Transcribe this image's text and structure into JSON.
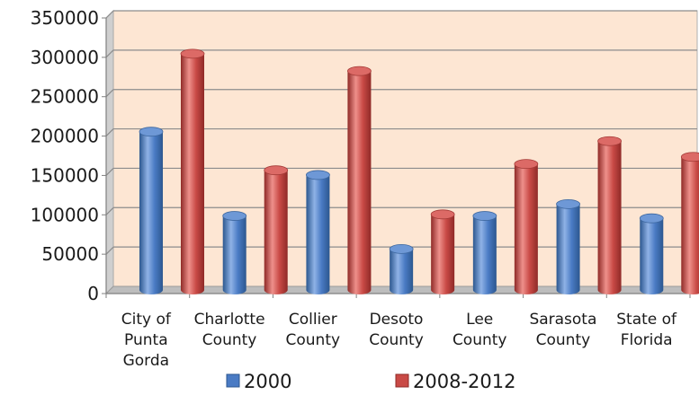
{
  "chart_data": {
    "type": "bar",
    "title": "",
    "xlabel": "",
    "ylabel": "",
    "categories": [
      [
        "City of",
        "Punta",
        "Gorda"
      ],
      [
        "Charlotte",
        "County"
      ],
      [
        "Collier",
        "County"
      ],
      [
        "Desoto",
        "County"
      ],
      [
        "Lee",
        "County"
      ],
      [
        "Sarasota",
        "County"
      ],
      [
        "State of",
        "Florida"
      ]
    ],
    "series": [
      {
        "name": "2000",
        "color": "#4a7bc4",
        "values": [
          201000,
          94000,
          146000,
          52000,
          94000,
          109000,
          91000
        ]
      },
      {
        "name": "2008-2012",
        "color": "#c94a46",
        "values": [
          300000,
          152000,
          278000,
          96000,
          160000,
          189000,
          169000
        ]
      }
    ],
    "ylim": [
      0,
      350000
    ],
    "yticks": [
      "0",
      "50000",
      "100000",
      "150000",
      "200000",
      "250000",
      "300000",
      "350000"
    ],
    "grid": true,
    "legend_position": "bottom",
    "style": "3d-cylinder-columns",
    "plot_background": "#fde6d3"
  }
}
